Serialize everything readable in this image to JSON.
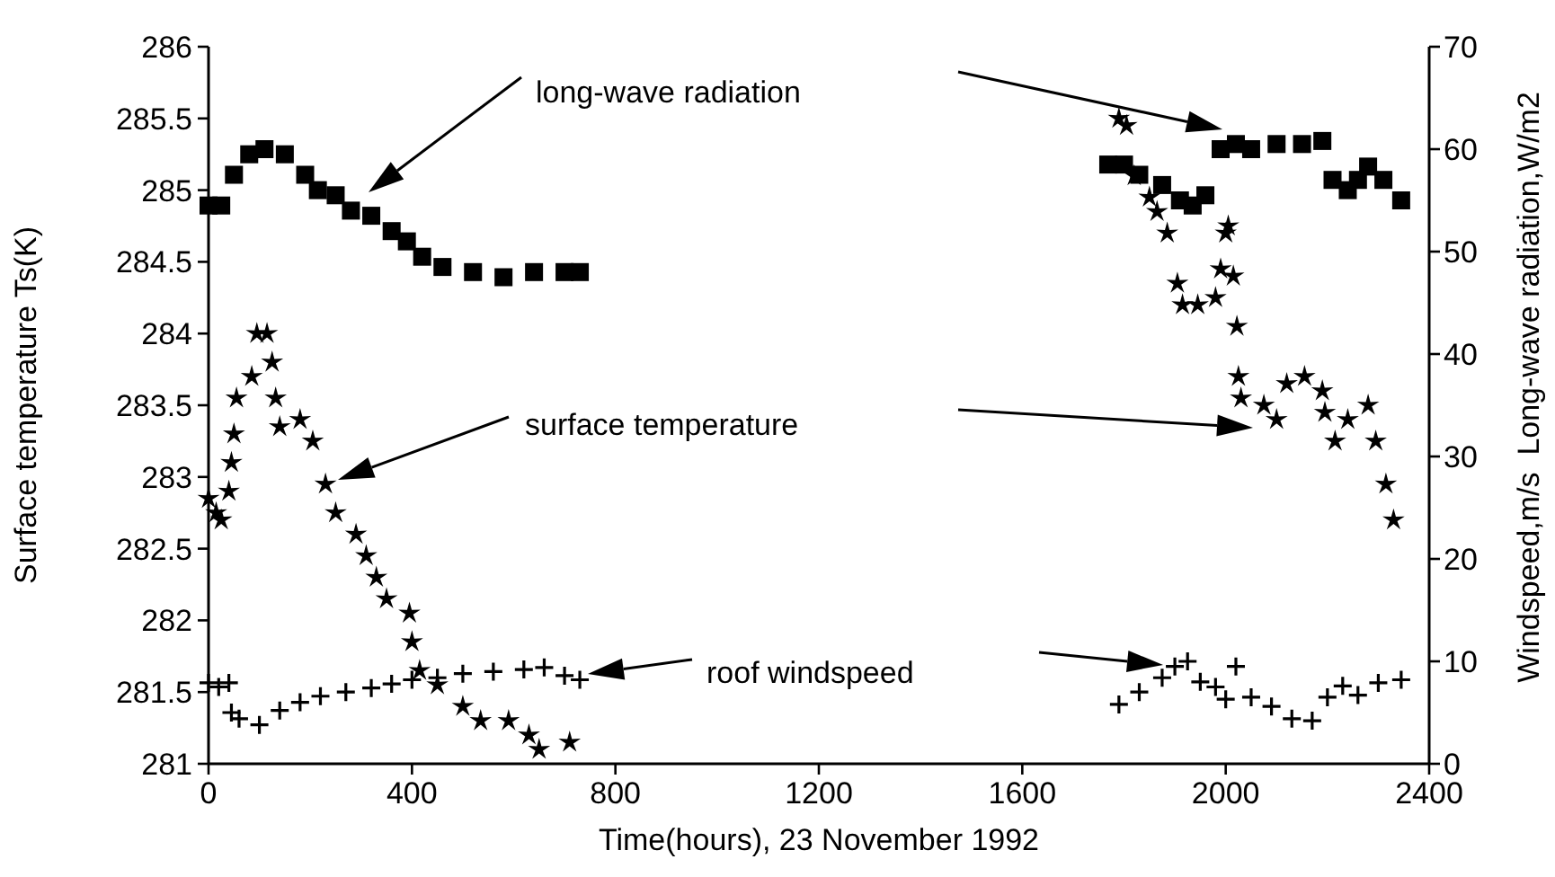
{
  "chart_data": {
    "type": "scatter",
    "xlabel": "Time(hours), 23 November 1992",
    "ylabel": "Surface temperature Ts(K)",
    "y2label": "Windspeed,m/s  Long-wave radiation,W/m2",
    "xlim": [
      0,
      2400
    ],
    "xticks": [
      0,
      400,
      800,
      1200,
      1600,
      2000,
      2400
    ],
    "ylim": [
      281,
      286
    ],
    "yticks": [
      281,
      281.5,
      282,
      282.5,
      283,
      283.5,
      284,
      284.5,
      285,
      285.5,
      286
    ],
    "y2lim": [
      0,
      70
    ],
    "y2ticks": [
      0,
      10,
      20,
      30,
      40,
      50,
      60,
      70
    ],
    "grid": false,
    "annotations": [
      "long-wave radiation",
      "surface temperature",
      "roof windspeed"
    ],
    "series": [
      {
        "color": "#000000",
        "marker": "square",
        "axis": "y2",
        "x": [
          0,
          25,
          50,
          80,
          110,
          150,
          190,
          215,
          250,
          280,
          320,
          360,
          390,
          420,
          460,
          520,
          580,
          640,
          700,
          730,
          1769,
          1800,
          1830,
          1875,
          1910,
          1935,
          1960,
          1990,
          2020,
          2050,
          2100,
          2150,
          2190,
          2210,
          2240,
          2260,
          2280,
          2310,
          2345
        ],
        "values": [
          54.5,
          54.5,
          57.5,
          59.5,
          60,
          59.5,
          57.5,
          56,
          55.5,
          54,
          53.5,
          52,
          51,
          49.5,
          48.5,
          48,
          47.5,
          48,
          48,
          48,
          58.5,
          58.5,
          57.5,
          56.5,
          55,
          54.5,
          55.5,
          60,
          60.5,
          60,
          60.5,
          60.5,
          60.8,
          57,
          56,
          57,
          58.3,
          57,
          55
        ]
      },
      {
        "color": "#000000",
        "marker": "star",
        "x": [
          0,
          15,
          25,
          40,
          45,
          50,
          55,
          85,
          95,
          115,
          125,
          132,
          140,
          180,
          205,
          230,
          250,
          290,
          310,
          330,
          350,
          395,
          400,
          415,
          450,
          500,
          535,
          590,
          630,
          650,
          710,
          1790,
          1805,
          1820,
          1850,
          1865,
          1885,
          1905,
          1915,
          1945,
          1980,
          1990,
          2000,
          2005,
          2015,
          2022,
          2025,
          2030,
          2075,
          2100,
          2120,
          2155,
          2190,
          2195,
          2215,
          2240,
          2280,
          2295,
          2315,
          2330
        ],
        "values": [
          282.85,
          282.75,
          282.7,
          282.9,
          283.1,
          283.3,
          283.55,
          283.7,
          284,
          284,
          283.8,
          283.55,
          283.35,
          283.4,
          283.25,
          282.95,
          282.75,
          282.6,
          282.45,
          282.3,
          282.15,
          282.05,
          281.85,
          281.65,
          281.55,
          281.4,
          281.3,
          281.3,
          281.2,
          281.1,
          281.15,
          285.5,
          285.45,
          285.1,
          284.95,
          284.85,
          284.7,
          284.35,
          284.2,
          284.2,
          284.25,
          284.45,
          284.7,
          284.75,
          284.4,
          284.05,
          283.7,
          283.55,
          283.5,
          283.4,
          283.65,
          283.7,
          283.6,
          283.45,
          283.25,
          283.4,
          283.5,
          283.25,
          282.95,
          282.7
        ]
      },
      {
        "color": "#000000",
        "marker": "cross",
        "axis": "y2",
        "x": [
          0,
          20,
          40,
          45,
          60,
          100,
          140,
          180,
          220,
          270,
          320,
          360,
          400,
          450,
          500,
          560,
          620,
          660,
          700,
          730,
          1790,
          1830,
          1875,
          1900,
          1925,
          1950,
          1980,
          2000,
          2020,
          2050,
          2090,
          2130,
          2170,
          2200,
          2230,
          2260,
          2300,
          2345
        ],
        "values": [
          7.9,
          7.5,
          7.9,
          5,
          4.4,
          3.8,
          5.2,
          6,
          6.6,
          7,
          7.4,
          7.8,
          8.2,
          8.4,
          8.8,
          9,
          9.2,
          9.4,
          8.6,
          8.2,
          5.8,
          7,
          8.4,
          9.5,
          10,
          8,
          7.5,
          6.3,
          9.5,
          6.5,
          5.6,
          4.4,
          4.2,
          6.5,
          7.6,
          6.7,
          7.9,
          8.2
        ]
      }
    ]
  }
}
